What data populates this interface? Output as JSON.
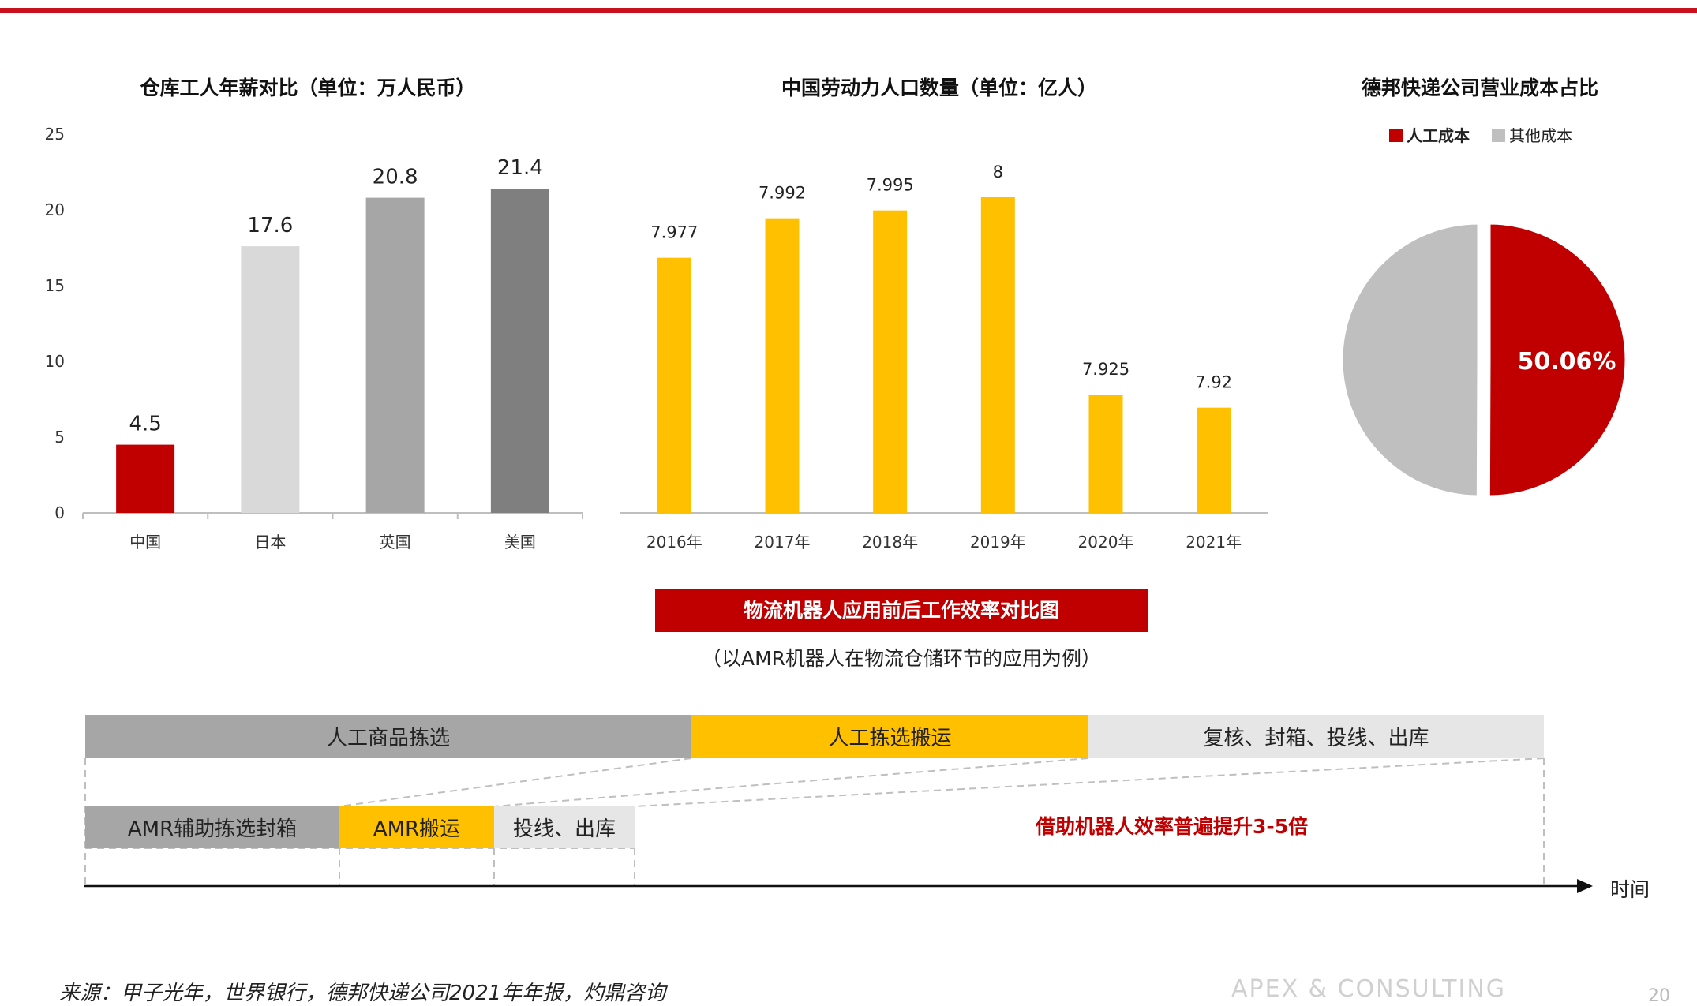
{
  "colors": {
    "accent_red": "#c00000",
    "bar_yellow": "#ffc000",
    "china_red": "#c00000",
    "gray_light": "#d9d9d9",
    "gray_mid": "#a6a6a6",
    "gray_dark": "#7f7f7f",
    "pie_other": "#bfbfbf"
  },
  "chart_data": [
    {
      "type": "bar",
      "title": "仓库工人年薪对比（单位：万人民币）",
      "categories": [
        "中国",
        "日本",
        "英国",
        "美国"
      ],
      "values": [
        4.5,
        17.6,
        20.8,
        21.4
      ],
      "value_labels": [
        "4.5",
        "17.6",
        "20.8",
        "21.4"
      ],
      "bar_colors": [
        "#c00000",
        "#d9d9d9",
        "#a6a6a6",
        "#7f7f7f"
      ],
      "yticks": [
        "0",
        "5",
        "10",
        "15",
        "20",
        "25"
      ],
      "ylim": [
        0,
        25
      ],
      "grid": false
    },
    {
      "type": "bar",
      "title": "中国劳动力人口数量（单位：亿人）",
      "categories": [
        "2016年",
        "2017年",
        "2018年",
        "2019年",
        "2020年",
        "2021年"
      ],
      "values": [
        7.977,
        7.992,
        7.995,
        8,
        7.925,
        7.92
      ],
      "value_labels": [
        "7.977",
        "7.992",
        "7.995",
        "8",
        "7.925",
        "7.92"
      ],
      "ylim": [
        7.88,
        8.015
      ],
      "bar_color": "#ffc000",
      "grid": false
    },
    {
      "type": "pie",
      "title": "德邦快递公司营业成本占比",
      "labels": [
        "人工成本",
        "其他成本"
      ],
      "values": [
        50.06,
        49.94
      ],
      "value_label": "50.06%",
      "colors": [
        "#c00000",
        "#bfbfbf"
      ],
      "legend_position": "top"
    }
  ],
  "banner": "物流机器人应用前后工作效率对比图",
  "subtitle": "（以AMR机器人在物流仓储环节的应用为例）",
  "process_before": [
    "人工商品拣选",
    "人工拣选搬运",
    "复核、封箱、投线、出库"
  ],
  "process_after": [
    "AMR辅助拣选封箱",
    "AMR搬运",
    "投线、出库"
  ],
  "efficiency_note": "借助机器人效率普遍提升3-5倍",
  "time_label": "时间",
  "source": "来源：甲子光年，世界银行，德邦快递公司2021年年报，灼鼎咨询",
  "brand": "APEX & CONSULTING",
  "page_number": "20"
}
